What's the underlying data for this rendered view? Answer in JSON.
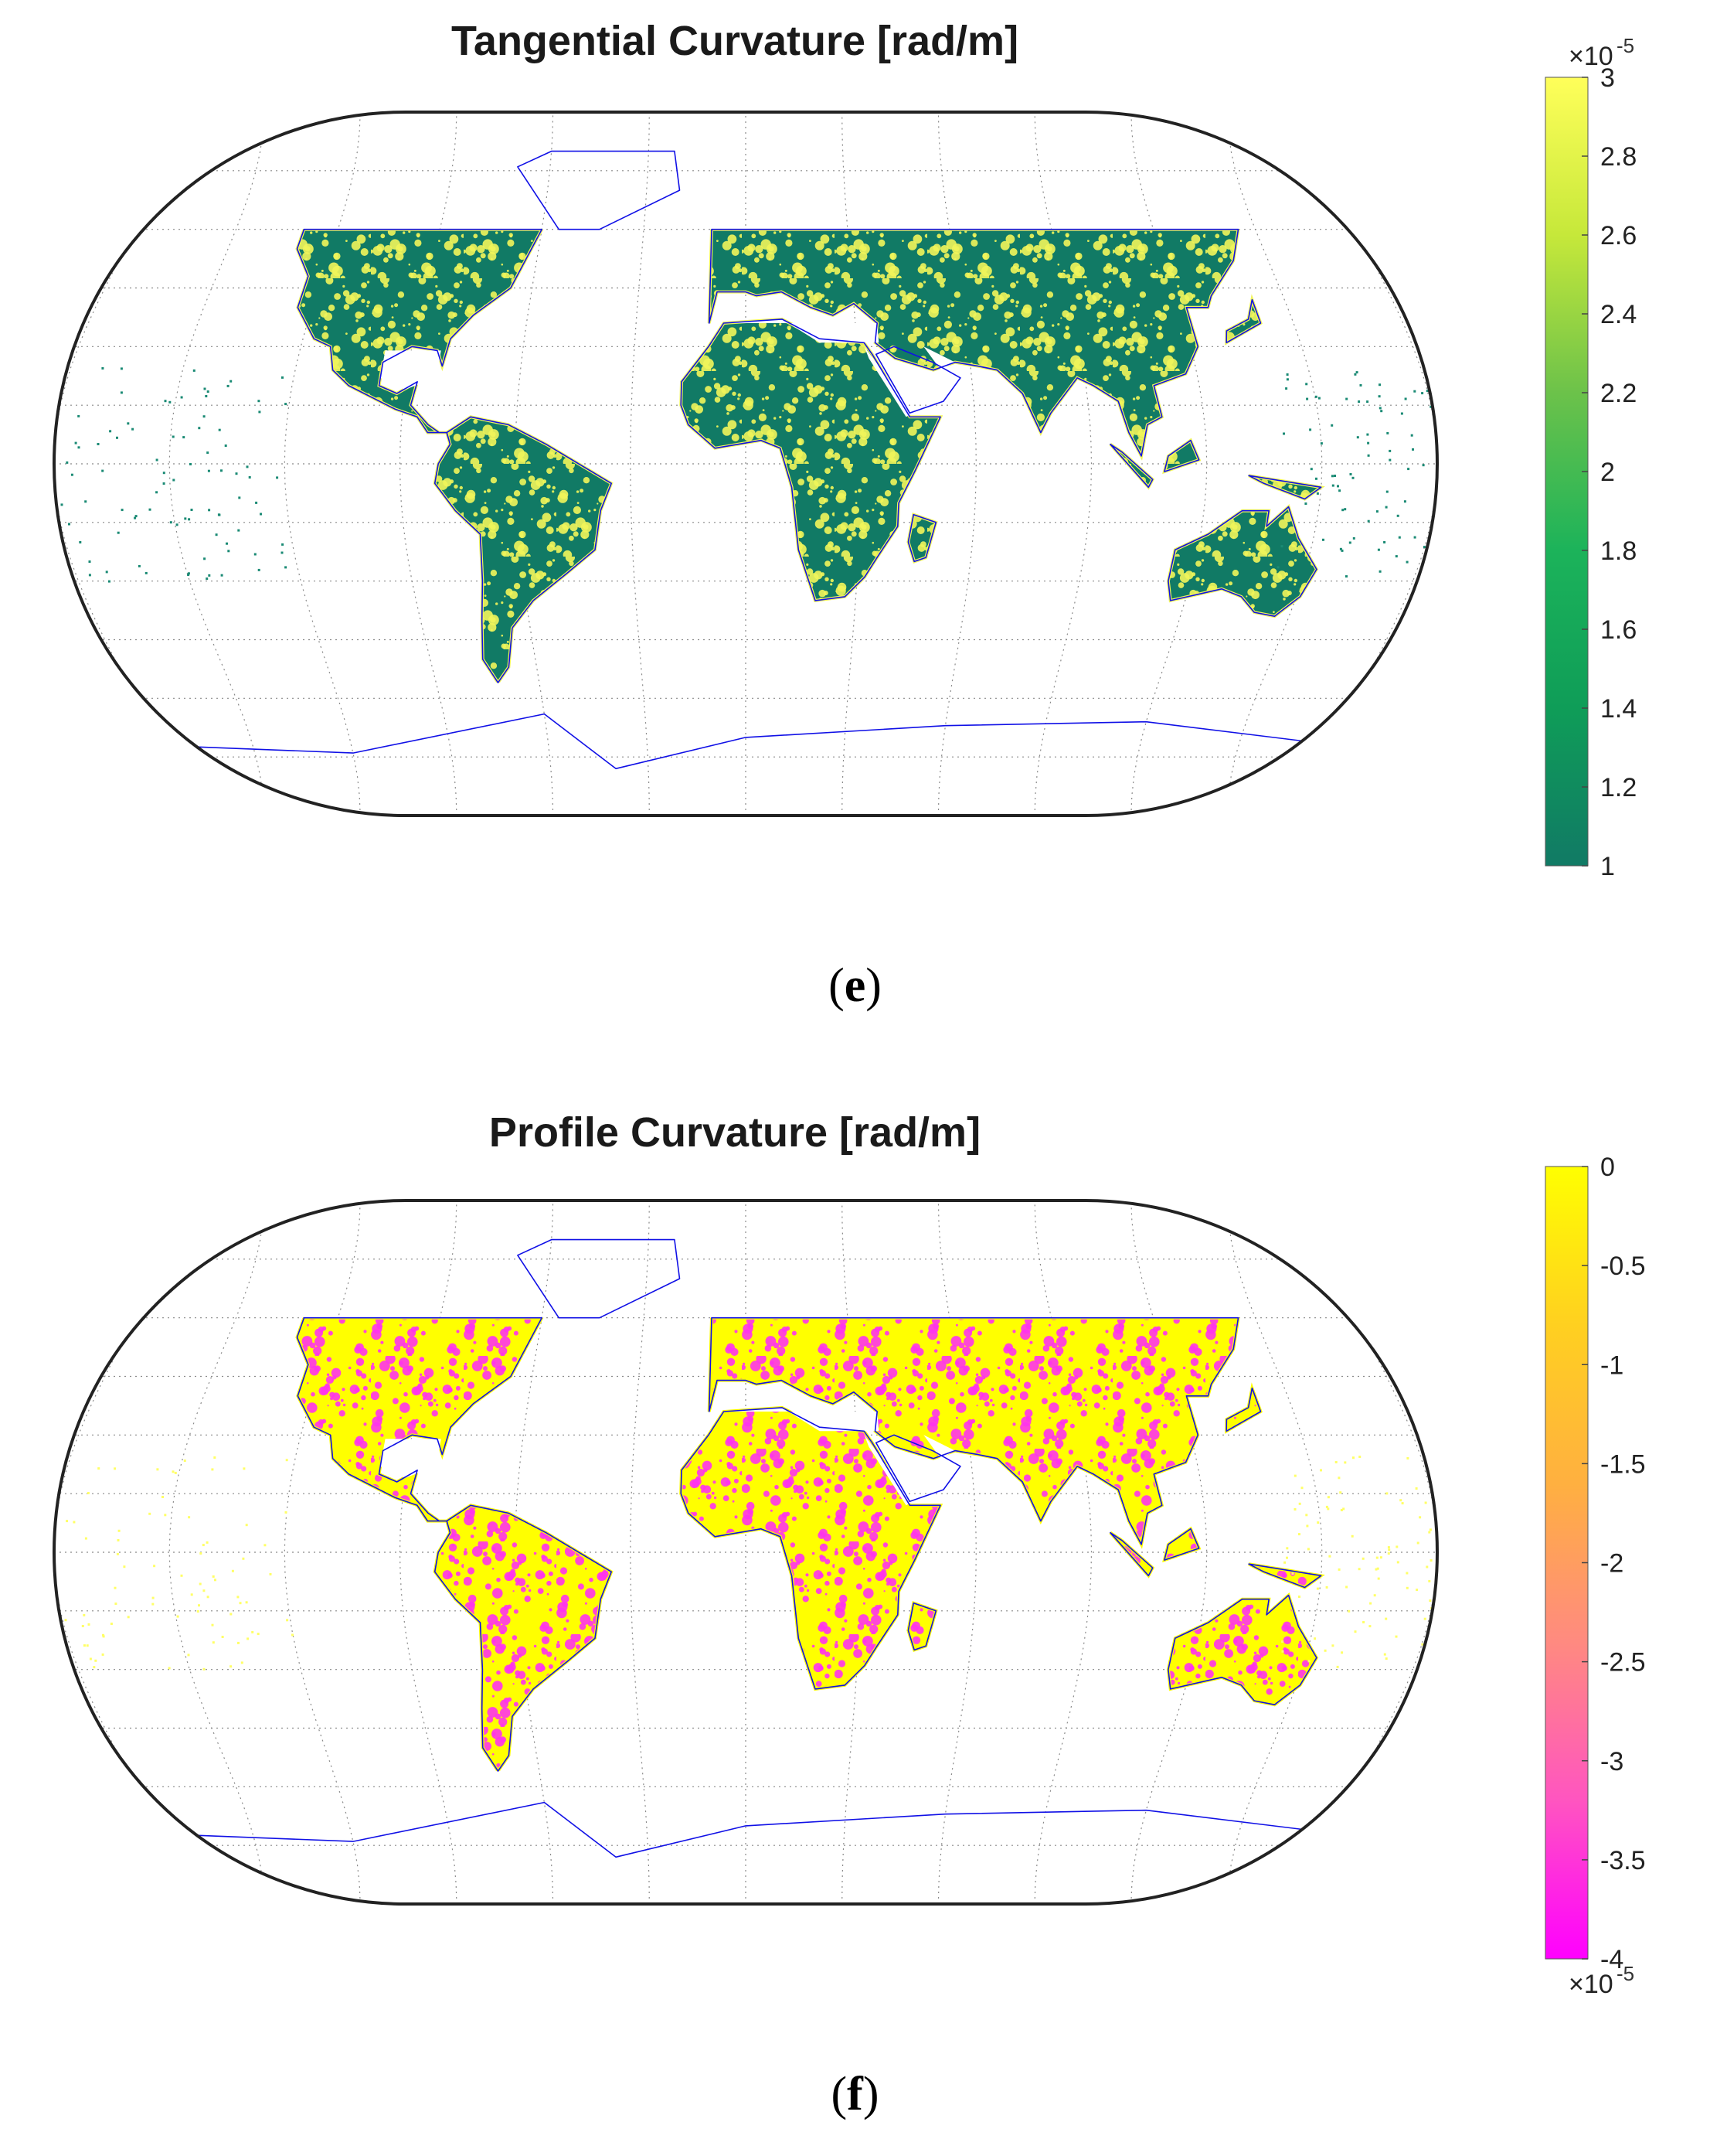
{
  "panels": [
    {
      "id": "e",
      "title": "Tangential Curvature [rad/m]",
      "label_letter": "e",
      "colorbar": {
        "min": 1,
        "max": 3,
        "ticks": [
          "1",
          "1.2",
          "1.4",
          "1.6",
          "1.8",
          "2",
          "2.2",
          "2.4",
          "2.6",
          "2.8",
          "3"
        ],
        "tick_values": [
          1,
          1.2,
          1.4,
          1.6,
          1.8,
          2,
          2.2,
          2.4,
          2.6,
          2.8,
          3
        ],
        "multiplier": "×10",
        "exponent": "-5",
        "multiplier_position": "top",
        "colors": [
          "#117a65",
          "#0f9d58",
          "#1cb35a",
          "#6cc24a",
          "#c6e83a",
          "#ffff5a"
        ]
      },
      "land_high_color": "#f1f55a",
      "land_low_color": "#117a65",
      "ocean_island_color": "#1a8a74"
    },
    {
      "id": "f",
      "title": "Profile Curvature [rad/m]",
      "label_letter": "f",
      "colorbar": {
        "min": -4,
        "max": 0,
        "ticks": [
          "0",
          "-0.5",
          "-1",
          "-1.5",
          "-2",
          "-2.5",
          "-3",
          "-3.5",
          "-4"
        ],
        "tick_values": [
          0,
          -0.5,
          -1,
          -1.5,
          -2,
          -2.5,
          -3,
          -3.5,
          -4
        ],
        "multiplier": "×10",
        "exponent": "-5",
        "multiplier_position": "bottom",
        "colors": [
          "#ff00ff",
          "#ff55c0",
          "#ff8a80",
          "#ffb040",
          "#ffd020",
          "#ffff00"
        ]
      },
      "land_high_color": "#ffff00",
      "land_low_color": "#ff33ee",
      "ocean_island_color": "#ffff66"
    }
  ],
  "map_style": {
    "coastline_color": "#1010e6",
    "graticule_color": "#8a8a8a",
    "frame_color": "#222222",
    "projection": "Robinson-like pseudocylindrical",
    "data_lat_range": [
      -56,
      60
    ]
  }
}
